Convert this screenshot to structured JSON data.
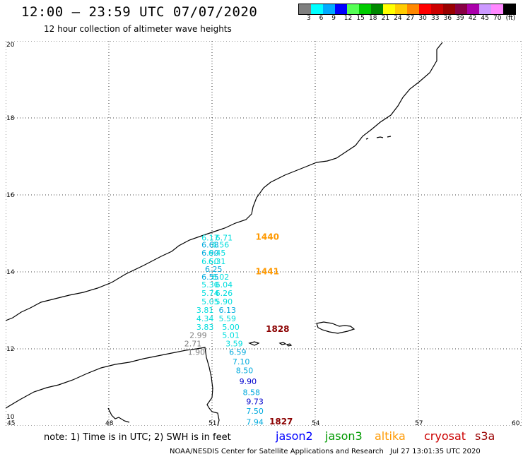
{
  "header": {
    "title": "12:00 – 23:59 UTC 07/07/2020",
    "subtitle": "12 hour collection of altimeter wave heights"
  },
  "colorbar": {
    "colors": [
      "#7f7f7f",
      "#00ffff",
      "#00aaff",
      "#0000ff",
      "#55ff55",
      "#00cc00",
      "#008800",
      "#ffff00",
      "#ffcc00",
      "#ff8800",
      "#ff0000",
      "#cc0000",
      "#990000",
      "#880044",
      "#aa00aa",
      "#cc99ff",
      "#ff88ff",
      "#000000"
    ],
    "labels": [
      "3",
      "6",
      "9",
      "12",
      "15",
      "18",
      "21",
      "24",
      "27",
      "30",
      "33",
      "36",
      "39",
      "42",
      "45",
      "70",
      "(ft)"
    ]
  },
  "map": {
    "lon_labels": [
      "45",
      "48",
      "51",
      "54",
      "57",
      "60"
    ],
    "lat_labels": [
      "20",
      "18",
      "16",
      "14",
      "12",
      "10"
    ]
  },
  "chart_data": {
    "type": "scatter",
    "xlim": [
      45,
      60
    ],
    "ylim": [
      10,
      20
    ],
    "passes": [
      {
        "label": "1440",
        "color": "#ff9900",
        "lon": 52.1,
        "lat": 14.8
      },
      {
        "label": "1441",
        "color": "#ff9900",
        "lon": 52.1,
        "lat": 13.9
      },
      {
        "label": "1828",
        "color": "#8b0000",
        "lon": 52.4,
        "lat": 12.4
      },
      {
        "label": "1827",
        "color": "#8b0000",
        "lon": 52.5,
        "lat": 10.0
      }
    ],
    "points": [
      {
        "v": "6.17",
        "lon": 50.9,
        "lat": 14.82,
        "c": "#00dddd"
      },
      {
        "v": "6.71",
        "lon": 51.3,
        "lat": 14.82,
        "c": "#00dddd"
      },
      {
        "v": "6.68",
        "lon": 50.9,
        "lat": 14.63,
        "c": "#00aadd"
      },
      {
        "v": "6.56",
        "lon": 51.2,
        "lat": 14.63,
        "c": "#00dddd"
      },
      {
        "v": "6.90",
        "lon": 50.9,
        "lat": 14.42,
        "c": "#00aadd"
      },
      {
        "v": "6.45",
        "lon": 51.1,
        "lat": 14.42,
        "c": "#00dddd"
      },
      {
        "v": "6.50",
        "lon": 50.9,
        "lat": 14.2,
        "c": "#00dddd"
      },
      {
        "v": "6.31",
        "lon": 51.1,
        "lat": 14.2,
        "c": "#00dddd"
      },
      {
        "v": "6.25",
        "lon": 51.0,
        "lat": 14.0,
        "c": "#00aadd"
      },
      {
        "v": "6.55",
        "lon": 50.9,
        "lat": 13.8,
        "c": "#00aadd"
      },
      {
        "v": "6.02",
        "lon": 51.2,
        "lat": 13.8,
        "c": "#00dddd"
      },
      {
        "v": "5.30",
        "lon": 50.9,
        "lat": 13.6,
        "c": "#00dddd"
      },
      {
        "v": "6.04",
        "lon": 51.3,
        "lat": 13.6,
        "c": "#00dddd"
      },
      {
        "v": "5.74",
        "lon": 50.9,
        "lat": 13.38,
        "c": "#00dddd"
      },
      {
        "v": "6.26",
        "lon": 51.3,
        "lat": 13.38,
        "c": "#00dddd"
      },
      {
        "v": "5.05",
        "lon": 50.9,
        "lat": 13.16,
        "c": "#00dddd"
      },
      {
        "v": "5.90",
        "lon": 51.3,
        "lat": 13.16,
        "c": "#00dddd"
      },
      {
        "v": "3.81",
        "lon": 50.75,
        "lat": 12.94,
        "c": "#00dddd"
      },
      {
        "v": "6.13",
        "lon": 51.4,
        "lat": 12.94,
        "c": "#00aadd"
      },
      {
        "v": "4.34",
        "lon": 50.75,
        "lat": 12.72,
        "c": "#00dddd"
      },
      {
        "v": "5.59",
        "lon": 51.4,
        "lat": 12.72,
        "c": "#00dddd"
      },
      {
        "v": "3.83",
        "lon": 50.75,
        "lat": 12.5,
        "c": "#00dddd"
      },
      {
        "v": "5.00",
        "lon": 51.5,
        "lat": 12.5,
        "c": "#00dddd"
      },
      {
        "v": "2.99",
        "lon": 50.55,
        "lat": 12.28,
        "c": "#7f7f7f"
      },
      {
        "v": "5.01",
        "lon": 51.5,
        "lat": 12.28,
        "c": "#00dddd"
      },
      {
        "v": "2.71",
        "lon": 50.4,
        "lat": 12.06,
        "c": "#7f7f7f"
      },
      {
        "v": "3.59",
        "lon": 51.6,
        "lat": 12.06,
        "c": "#00dddd"
      },
      {
        "v": "1.90",
        "lon": 50.5,
        "lat": 11.84,
        "c": "#7f7f7f"
      },
      {
        "v": "6.59",
        "lon": 51.7,
        "lat": 11.84,
        "c": "#00aadd"
      },
      {
        "v": "7.10",
        "lon": 51.8,
        "lat": 11.6,
        "c": "#00aadd"
      },
      {
        "v": "8.50",
        "lon": 51.9,
        "lat": 11.37,
        "c": "#00aadd"
      },
      {
        "v": "9.90",
        "lon": 52.0,
        "lat": 11.08,
        "c": "#0000cc"
      },
      {
        "v": "8.58",
        "lon": 52.1,
        "lat": 10.8,
        "c": "#00aadd"
      },
      {
        "v": "9.73",
        "lon": 52.2,
        "lat": 10.56,
        "c": "#0000cc"
      },
      {
        "v": "7.50",
        "lon": 52.2,
        "lat": 10.31,
        "c": "#00aadd"
      },
      {
        "v": "7.94",
        "lon": 52.2,
        "lat": 10.03,
        "c": "#00aadd"
      }
    ]
  },
  "note": "note: 1) Time is in UTC; 2) SWH is in feet",
  "legend": [
    {
      "label": "jason2",
      "color": "#0000ff"
    },
    {
      "label": "jason3",
      "color": "#009900"
    },
    {
      "label": "altika",
      "color": "#ff9900"
    },
    {
      "label": "cryosat",
      "color": "#cc0000"
    },
    {
      "label": "s3a",
      "color": "#990000"
    }
  ],
  "footer": {
    "credit": "NOAA/NESDIS Center for Satellite Applications and Research",
    "timestamp": "Jul 27 13:01:35 UTC 2020"
  }
}
